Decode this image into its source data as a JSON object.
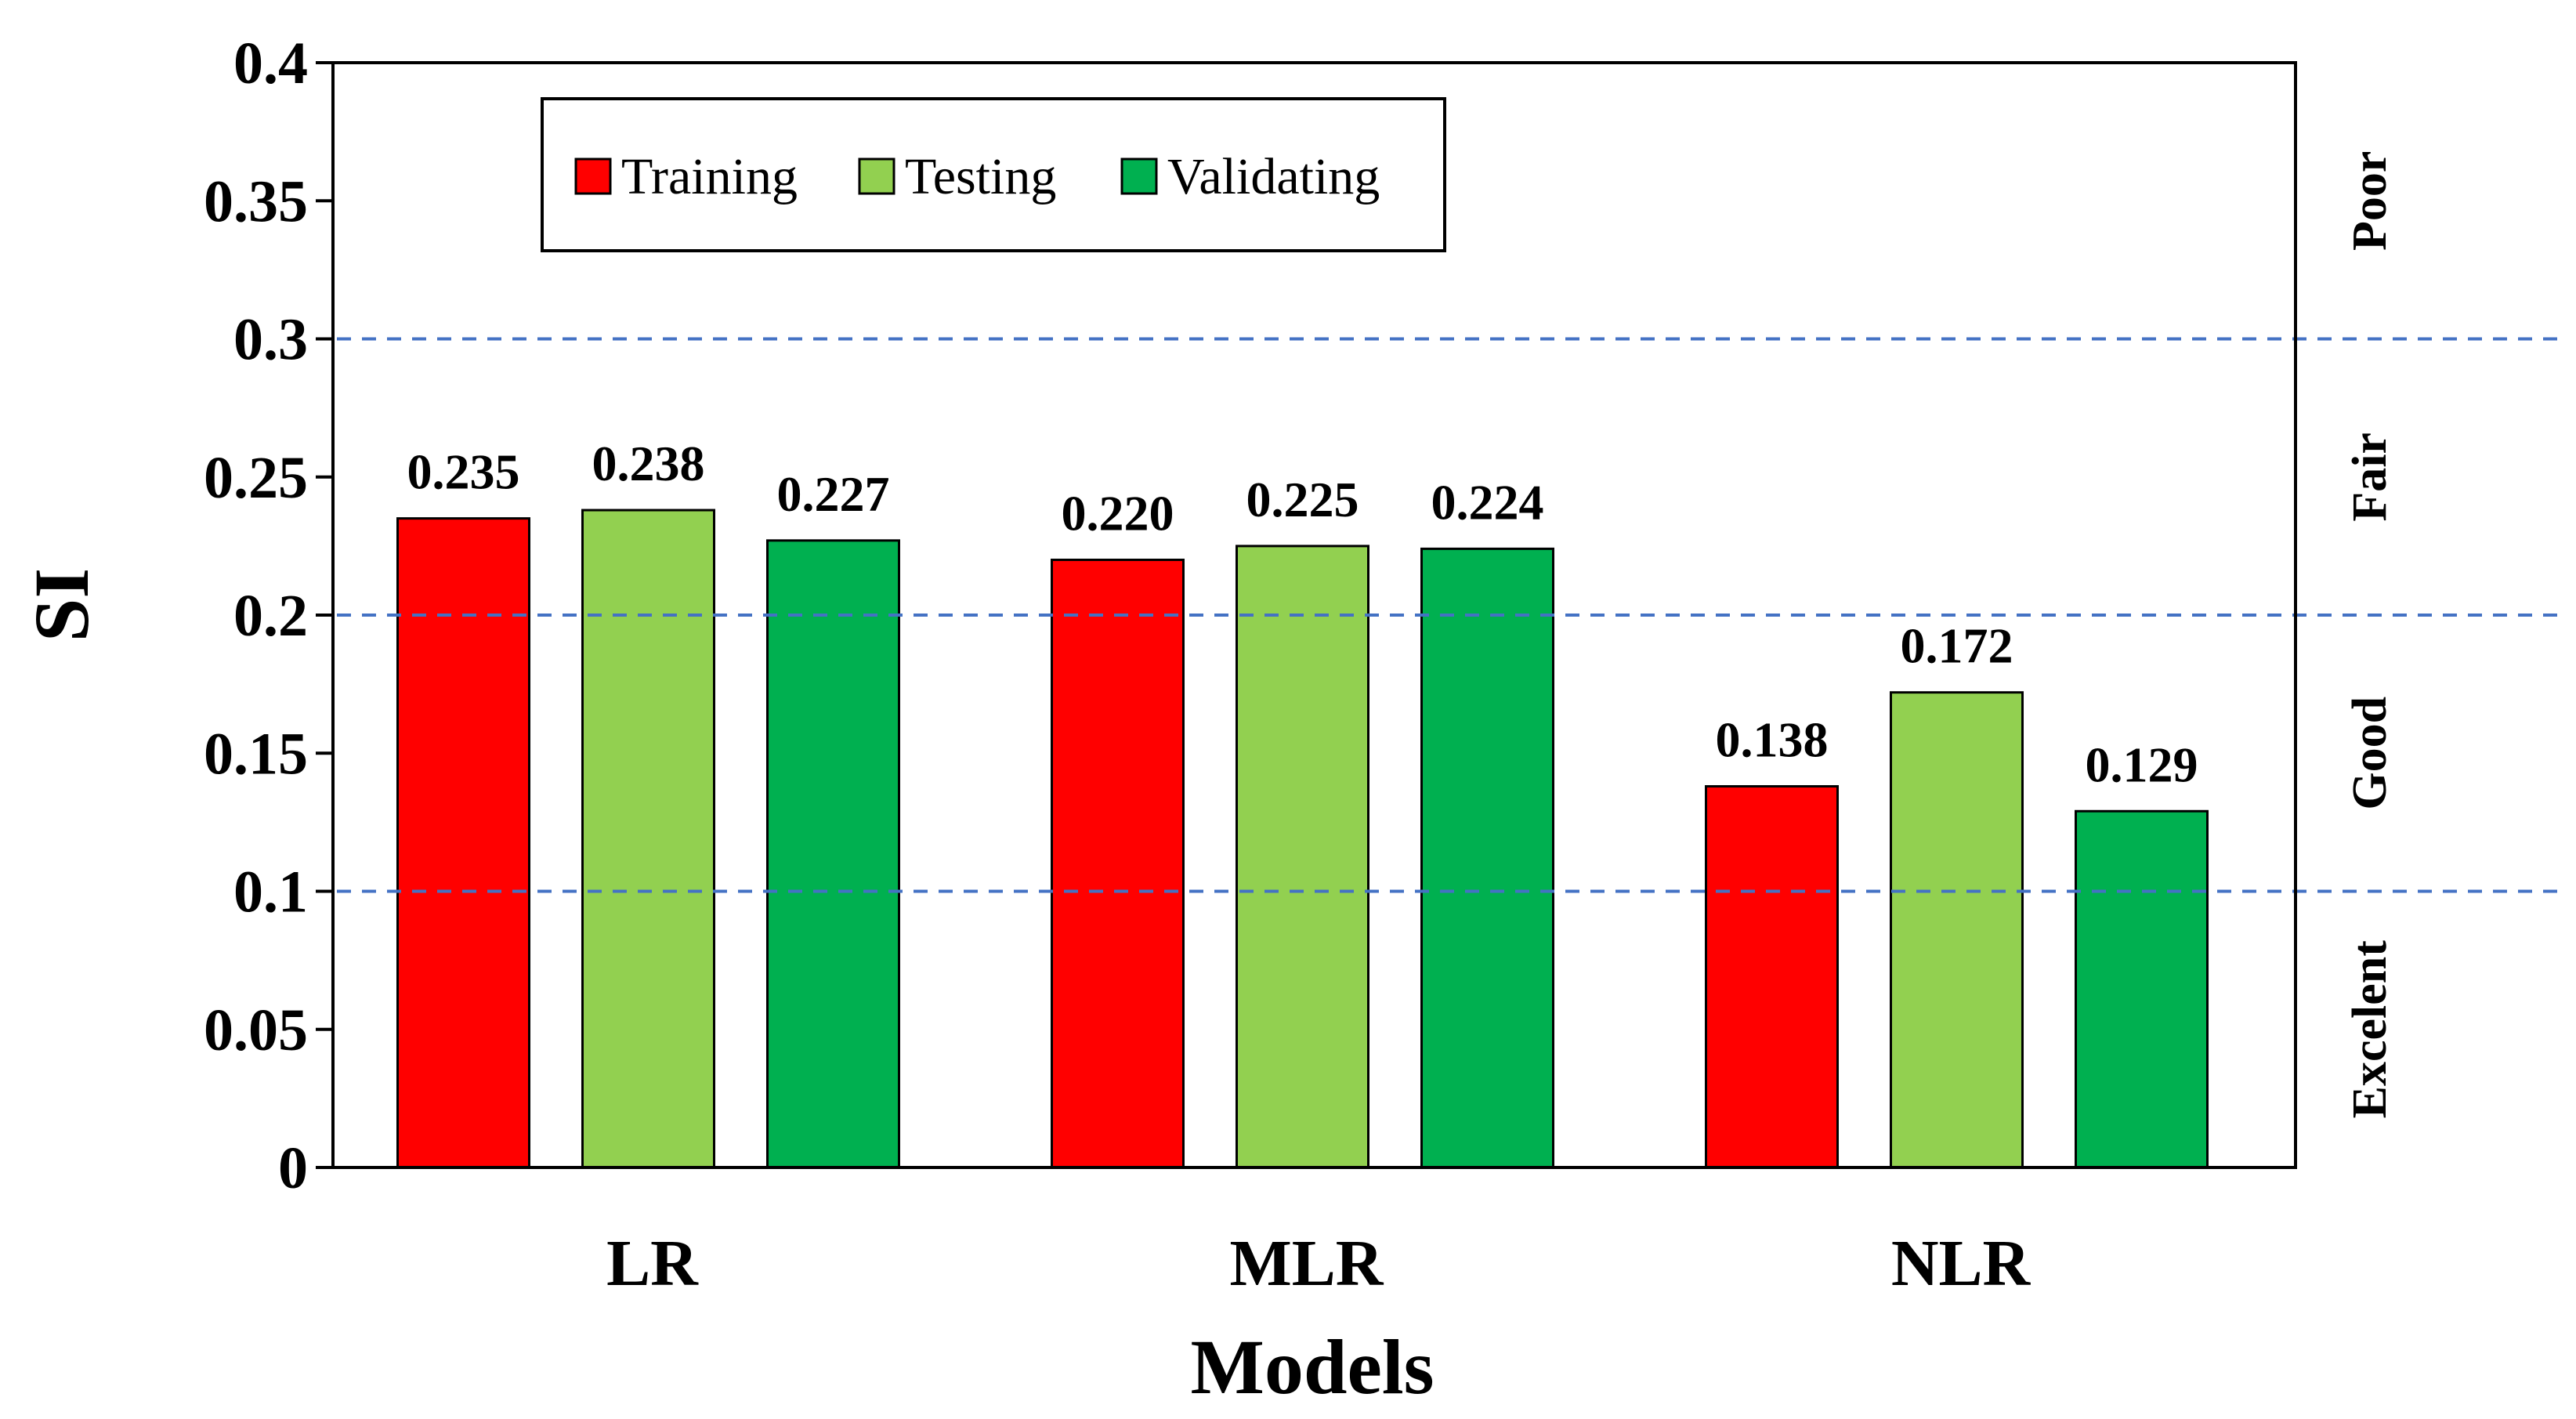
{
  "chart_data": {
    "type": "bar",
    "title": "",
    "xlabel": "Models",
    "ylabel": "SI",
    "ylim": [
      0,
      0.4
    ],
    "yticks": [
      0,
      0.05,
      0.1,
      0.15,
      0.2,
      0.25,
      0.3,
      0.35,
      0.4
    ],
    "ytick_labels": [
      "0",
      "0.05",
      "0.1",
      "0.15",
      "0.2",
      "0.25",
      "0.3",
      "0.35",
      "0.4"
    ],
    "categories": [
      "LR",
      "MLR",
      "NLR"
    ],
    "series": [
      {
        "name": "Training",
        "color": "#ff0000",
        "values": [
          0.235,
          0.22,
          0.138
        ],
        "labels": [
          "0.235",
          "0.220",
          "0.138"
        ]
      },
      {
        "name": "Testing",
        "color": "#92d050",
        "values": [
          0.238,
          0.225,
          0.172
        ],
        "labels": [
          "0.238",
          "0.225",
          "0.172"
        ]
      },
      {
        "name": "Validating",
        "color": "#00b050",
        "values": [
          0.227,
          0.224,
          0.129
        ],
        "labels": [
          "0.227",
          "0.224",
          "0.129"
        ]
      }
    ],
    "thresholds": [
      0.1,
      0.2,
      0.3
    ],
    "threshold_color": "#4472c4",
    "zones": [
      {
        "label": "Excelent",
        "from": 0,
        "to": 0.1
      },
      {
        "label": "Good",
        "from": 0.1,
        "to": 0.2
      },
      {
        "label": "Fair",
        "from": 0.2,
        "to": 0.3
      },
      {
        "label": "Poor",
        "from": 0.3,
        "to": 0.4
      }
    ],
    "legend_position": "top-left",
    "grid": false
  }
}
